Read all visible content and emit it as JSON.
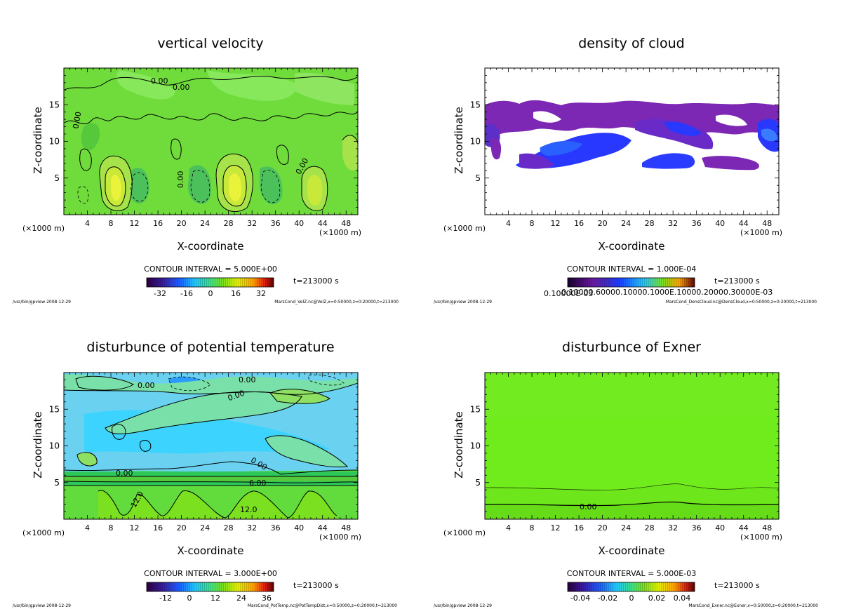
{
  "chart_data": [
    {
      "type": "heatmap",
      "title": "vertical velocity",
      "xlabel": "X-coordinate",
      "ylabel": "Z-coordinate",
      "x_unit_left": "(×1000 m)",
      "x_unit_right": "(×1000 m)",
      "xlim": [
        0,
        50
      ],
      "ylim": [
        0,
        20
      ],
      "x_ticks": [
        4,
        8,
        12,
        16,
        20,
        24,
        28,
        32,
        36,
        40,
        44,
        48
      ],
      "y_ticks": [
        5,
        10,
        15
      ],
      "contour_interval": "CONTOUR INTERVAL = 5.000E+00",
      "time": "t=213000 s",
      "colorbar_ticks": [
        "-32",
        "-16",
        "0",
        "16",
        "32"
      ],
      "contour_labels": [
        "0.00",
        "0.00",
        "0.00",
        "0.00",
        "0.00"
      ],
      "footer_left": "/usr/bin/gpview  2008-12-29",
      "footer_right": "MarsCond_VelZ.nc@VelZ,x=0:50000,z=0:20000,t=213000"
    },
    {
      "type": "heatmap",
      "title": "density of cloud",
      "xlabel": "X-coordinate",
      "ylabel": "Z-coordinate",
      "x_unit_left": "(×1000 m)",
      "x_unit_right": "(×1000 m)",
      "xlim": [
        0,
        50
      ],
      "ylim": [
        0,
        20
      ],
      "x_ticks": [
        4,
        8,
        12,
        16,
        20,
        24,
        28,
        32,
        36,
        40,
        44,
        48
      ],
      "y_ticks": [
        5,
        10,
        15
      ],
      "contour_interval": "CONTOUR INTERVAL = 1.000E-04",
      "time": "t=213000 s",
      "colorbar_ticks": [
        "0.10000E-03"
      ],
      "colorbar_overprint": "0.10000.60000.10000.1000E.10000.20000.30000E-03",
      "contour_labels": [],
      "footer_left": "/usr/bin/gpview  2008-12-29",
      "footer_right": "MarsCond_DensCloud.nc@DensCloud,x=0:50000,z=0:20000,t=213000"
    },
    {
      "type": "heatmap",
      "title": "disturbunce of potential temperature",
      "xlabel": "X-coordinate",
      "ylabel": "Z-coordinate",
      "x_unit_left": "(×1000 m)",
      "x_unit_right": "(×1000 m)",
      "xlim": [
        0,
        50
      ],
      "ylim": [
        0,
        20
      ],
      "x_ticks": [
        4,
        8,
        12,
        16,
        20,
        24,
        28,
        32,
        36,
        40,
        44,
        48
      ],
      "y_ticks": [
        5,
        10,
        15
      ],
      "contour_interval": "CONTOUR INTERVAL = 3.000E+00",
      "time": "t=213000 s",
      "colorbar_ticks": [
        "-12",
        "0",
        "12",
        "24",
        "36"
      ],
      "contour_labels": [
        "0.00",
        "0.00",
        "0.00",
        "0.00",
        "0.00",
        "6.00",
        "12.0",
        "12.0"
      ],
      "footer_left": "/usr/bin/gpview  2008-12-29",
      "footer_right": "MarsCond_PotTemp.nc@PotTempDist,x=0:50000,z=0:20000,t=213000"
    },
    {
      "type": "heatmap",
      "title": "disturbunce of Exner",
      "xlabel": "X-coordinate",
      "ylabel": "Z-coordinate",
      "x_unit_left": "(×1000 m)",
      "x_unit_right": "(×1000 m)",
      "xlim": [
        0,
        50
      ],
      "ylim": [
        0,
        20
      ],
      "x_ticks": [
        4,
        8,
        12,
        16,
        20,
        24,
        28,
        32,
        36,
        40,
        44,
        48
      ],
      "y_ticks": [
        5,
        10,
        15
      ],
      "contour_interval": "CONTOUR INTERVAL = 5.000E-03",
      "time": "t=213000 s",
      "colorbar_ticks": [
        "-0.04",
        "-0.02",
        "0",
        "0.02",
        "0.04"
      ],
      "contour_labels": [
        "0.00"
      ],
      "footer_left": "/usr/bin/gpview  2008-12-29",
      "footer_right": "MarsCond_Exner.nc@Exner,x=0:50000,z=0:20000,t=213000"
    }
  ]
}
